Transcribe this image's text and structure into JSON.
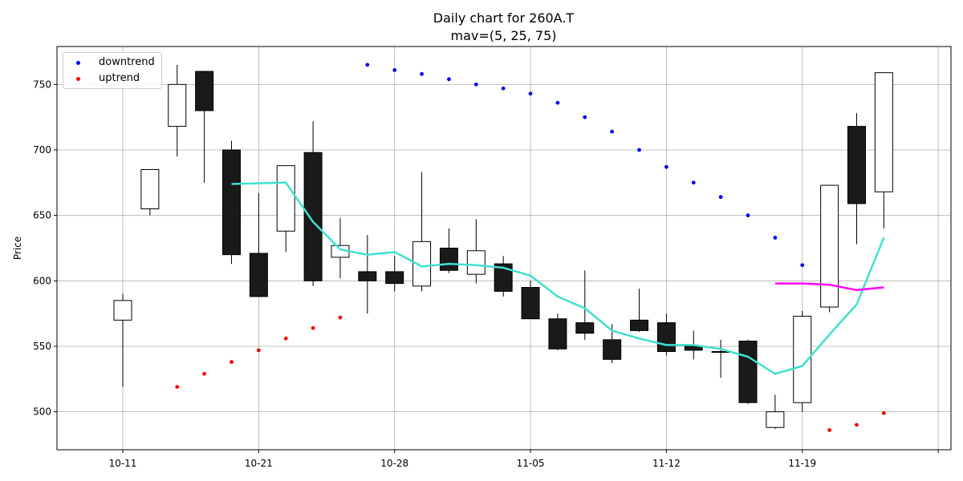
{
  "chart_data": {
    "type": "candlestick",
    "title": "Daily chart for 260A.T",
    "subtitle": "mav=(5, 25, 75)",
    "xlabel": "",
    "ylabel": "Price",
    "ylim": [
      471,
      779
    ],
    "yticks": [
      500,
      550,
      600,
      650,
      700,
      750
    ],
    "xtick_labels": [
      "10-11",
      "10-21",
      "10-28",
      "11-05",
      "11-12",
      "11-19"
    ],
    "xtick_dates": [
      "10-11",
      "10-21",
      "10-28",
      "11-05",
      "11-12",
      "11-19"
    ],
    "grid": true,
    "legend_position": "top-left",
    "dates": [
      "10-11",
      "10-15",
      "10-16",
      "10-17",
      "10-18",
      "10-21",
      "10-22",
      "10-23",
      "10-24",
      "10-25",
      "10-28",
      "10-29",
      "10-30",
      "10-31",
      "11-01",
      "11-05",
      "11-06",
      "11-07",
      "11-08",
      "11-11",
      "11-12",
      "11-13",
      "11-14",
      "11-15",
      "11-18",
      "11-19",
      "11-20",
      "11-21",
      "11-22"
    ],
    "candles": [
      {
        "date": "10-11",
        "open": 570,
        "high": 590,
        "low": 519,
        "close": 585
      },
      {
        "date": "10-15",
        "open": 655,
        "high": 685,
        "low": 650,
        "close": 685
      },
      {
        "date": "10-16",
        "open": 718,
        "high": 765,
        "low": 695,
        "close": 750
      },
      {
        "date": "10-17",
        "open": 760,
        "high": 760,
        "low": 675,
        "close": 730
      },
      {
        "date": "10-18",
        "open": 700,
        "high": 707,
        "low": 613,
        "close": 620
      },
      {
        "date": "10-21",
        "open": 621,
        "high": 667,
        "low": 588,
        "close": 588
      },
      {
        "date": "10-22",
        "open": 638,
        "high": 688,
        "low": 622,
        "close": 688
      },
      {
        "date": "10-23",
        "open": 698,
        "high": 722,
        "low": 596,
        "close": 600
      },
      {
        "date": "10-24",
        "open": 618,
        "high": 648,
        "low": 602,
        "close": 627
      },
      {
        "date": "10-25",
        "open": 607,
        "high": 635,
        "low": 575,
        "close": 600
      },
      {
        "date": "10-28",
        "open": 607,
        "high": 619,
        "low": 592,
        "close": 598
      },
      {
        "date": "10-29",
        "open": 596,
        "high": 683,
        "low": 592,
        "close": 630
      },
      {
        "date": "10-30",
        "open": 625,
        "high": 640,
        "low": 606,
        "close": 608
      },
      {
        "date": "10-31",
        "open": 605,
        "high": 647,
        "low": 598,
        "close": 623
      },
      {
        "date": "11-01",
        "open": 613,
        "high": 619,
        "low": 588,
        "close": 592
      },
      {
        "date": "11-05",
        "open": 595,
        "high": 600,
        "low": 571,
        "close": 571
      },
      {
        "date": "11-06",
        "open": 571,
        "high": 575,
        "low": 547,
        "close": 548
      },
      {
        "date": "11-07",
        "open": 568,
        "high": 608,
        "low": 555,
        "close": 560
      },
      {
        "date": "11-08",
        "open": 555,
        "high": 567,
        "low": 537,
        "close": 540
      },
      {
        "date": "11-11",
        "open": 570,
        "high": 594,
        "low": 561,
        "close": 562
      },
      {
        "date": "11-12",
        "open": 568,
        "high": 575,
        "low": 543,
        "close": 546
      },
      {
        "date": "11-13",
        "open": 550,
        "high": 562,
        "low": 540,
        "close": 547
      },
      {
        "date": "11-14",
        "open": 546,
        "high": 555,
        "low": 526,
        "close": 546
      },
      {
        "date": "11-15",
        "open": 554,
        "high": 555,
        "low": 506,
        "close": 507
      },
      {
        "date": "11-18",
        "open": 488,
        "high": 513,
        "low": 487,
        "close": 500
      },
      {
        "date": "11-19",
        "open": 507,
        "high": 577,
        "low": 500,
        "close": 573
      },
      {
        "date": "11-20",
        "open": 580,
        "high": 673,
        "low": 576,
        "close": 673
      },
      {
        "date": "11-21",
        "open": 718,
        "high": 728,
        "low": 628,
        "close": 659
      },
      {
        "date": "11-22",
        "open": 668,
        "high": 759,
        "low": 640,
        "close": 759
      }
    ],
    "series": [
      {
        "name": "downtrend",
        "kind": "scatter",
        "color": "#0000ff",
        "points": [
          [
            "10-25",
            765
          ],
          [
            "10-28",
            761
          ],
          [
            "10-29",
            758
          ],
          [
            "10-30",
            754
          ],
          [
            "10-31",
            750
          ],
          [
            "11-01",
            747
          ],
          [
            "11-05",
            743
          ],
          [
            "11-06",
            736
          ],
          [
            "11-07",
            725
          ],
          [
            "11-08",
            714
          ],
          [
            "11-11",
            700
          ],
          [
            "11-12",
            687
          ],
          [
            "11-13",
            675
          ],
          [
            "11-14",
            664
          ],
          [
            "11-15",
            650
          ],
          [
            "11-18",
            633
          ],
          [
            "11-19",
            612
          ]
        ]
      },
      {
        "name": "uptrend",
        "kind": "scatter",
        "color": "#ff0000",
        "points": [
          [
            "10-16",
            519
          ],
          [
            "10-17",
            529
          ],
          [
            "10-18",
            538
          ],
          [
            "10-21",
            547
          ],
          [
            "10-22",
            556
          ],
          [
            "10-23",
            564
          ],
          [
            "10-24",
            572
          ],
          [
            "11-20",
            486
          ],
          [
            "11-21",
            490
          ],
          [
            "11-22",
            499
          ]
        ]
      },
      {
        "kind": "line",
        "color": "#40e0d0",
        "points": [
          [
            "10-18",
            674
          ],
          [
            "10-22",
            675
          ],
          [
            "10-23",
            645
          ],
          [
            "10-24",
            624
          ],
          [
            "10-25",
            620
          ],
          [
            "10-28",
            622
          ],
          [
            "10-29",
            611
          ],
          [
            "10-30",
            613
          ],
          [
            "10-31",
            612
          ],
          [
            "11-01",
            610
          ],
          [
            "11-05",
            604
          ],
          [
            "11-06",
            588
          ],
          [
            "11-07",
            579
          ],
          [
            "11-08",
            562
          ],
          [
            "11-11",
            556
          ],
          [
            "11-12",
            551
          ],
          [
            "11-13",
            551
          ],
          [
            "11-14",
            548
          ],
          [
            "11-15",
            542
          ],
          [
            "11-18",
            529
          ],
          [
            "11-19",
            535
          ],
          [
            "11-20",
            559
          ],
          [
            "11-21",
            582
          ],
          [
            "11-22",
            633
          ]
        ]
      },
      {
        "kind": "line",
        "color": "#ff00ff",
        "points": [
          [
            "11-18",
            598
          ],
          [
            "11-19",
            598
          ],
          [
            "11-20",
            597
          ],
          [
            "11-21",
            593
          ],
          [
            "11-22",
            595
          ]
        ]
      }
    ],
    "colors": {
      "up_body": "#ffffff",
      "down_body": "#1a1a1a",
      "edge": "#000000",
      "grid": "#b0b0b0"
    }
  }
}
